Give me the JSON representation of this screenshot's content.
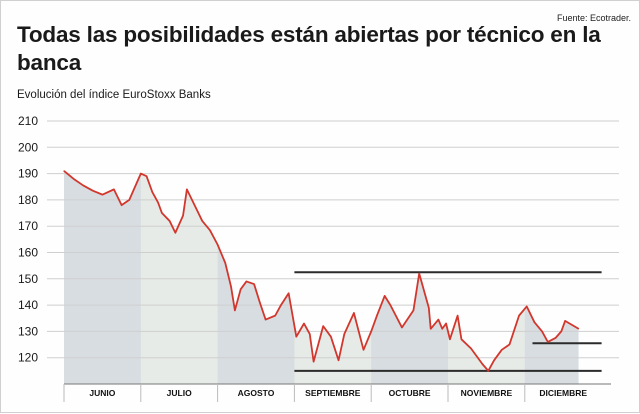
{
  "source": "Fuente: Ecotrader.",
  "title": "Todas las posibilidades están abiertas por técnico en la banca",
  "subtitle": "Evolución del índice EuroStoxx Banks",
  "colors": {
    "line": "#d2372d",
    "fill_a": "#d8dde1",
    "fill_b": "#e6ebe7",
    "grid": "#cfcfcf",
    "support": "#2b2b2b"
  },
  "chart_data": {
    "type": "area",
    "title": "Evolución del índice EuroStoxx Banks",
    "ylim": [
      110,
      210
    ],
    "yticks": [
      120,
      130,
      140,
      150,
      160,
      170,
      180,
      190,
      200,
      210
    ],
    "grid": "horizontal",
    "categories": [
      "JUNIO",
      "JULIO",
      "AGOSTO",
      "SEPTIEMBRE",
      "OCTUBRE",
      "NOVIEMBRE",
      "DICIEMBRE"
    ],
    "series": [
      {
        "values": [
          [
            0.0,
            191
          ],
          [
            0.25,
            188
          ],
          [
            0.5,
            185.5
          ],
          [
            0.75,
            183.5
          ],
          [
            1.0,
            182
          ],
          [
            1.3,
            184
          ],
          [
            1.5,
            178
          ],
          [
            1.7,
            180
          ],
          [
            2.0,
            190
          ],
          [
            2.15,
            189
          ],
          [
            2.3,
            183
          ],
          [
            2.45,
            179
          ],
          [
            2.55,
            175
          ],
          [
            2.75,
            172
          ],
          [
            2.9,
            167.5
          ],
          [
            3.1,
            174
          ],
          [
            3.2,
            184
          ],
          [
            3.4,
            178
          ],
          [
            3.6,
            172
          ],
          [
            3.8,
            168.5
          ],
          [
            4.0,
            163
          ],
          [
            4.2,
            156
          ],
          [
            4.35,
            147
          ],
          [
            4.45,
            138
          ],
          [
            4.6,
            146
          ],
          [
            4.75,
            149
          ],
          [
            4.95,
            148
          ],
          [
            5.1,
            141
          ],
          [
            5.25,
            134.5
          ],
          [
            5.5,
            136
          ],
          [
            5.65,
            140
          ],
          [
            5.85,
            144.5
          ],
          [
            6.05,
            128
          ],
          [
            6.25,
            133
          ],
          [
            6.4,
            129
          ],
          [
            6.5,
            118.5
          ],
          [
            6.75,
            132
          ],
          [
            6.95,
            128
          ],
          [
            7.15,
            119
          ],
          [
            7.3,
            129
          ],
          [
            7.55,
            137
          ],
          [
            7.8,
            123
          ],
          [
            8.0,
            130
          ],
          [
            8.15,
            136
          ],
          [
            8.35,
            143.5
          ],
          [
            8.5,
            140
          ],
          [
            8.8,
            131.5
          ],
          [
            9.1,
            138
          ],
          [
            9.25,
            152
          ],
          [
            9.5,
            139
          ],
          [
            9.55,
            131
          ],
          [
            9.75,
            134.5
          ],
          [
            9.85,
            131
          ],
          [
            9.95,
            133
          ],
          [
            10.05,
            127
          ],
          [
            10.25,
            136
          ],
          [
            10.35,
            127
          ],
          [
            10.6,
            123.5
          ],
          [
            10.9,
            117.5
          ],
          [
            11.05,
            115
          ],
          [
            11.2,
            119
          ],
          [
            11.4,
            123
          ],
          [
            11.6,
            125
          ],
          [
            11.85,
            136
          ],
          [
            12.05,
            139.5
          ],
          [
            12.25,
            133.5
          ],
          [
            12.45,
            130
          ],
          [
            12.6,
            126
          ],
          [
            12.8,
            127.5
          ],
          [
            12.95,
            130
          ],
          [
            13.05,
            134
          ],
          [
            13.4,
            131
          ]
        ]
      }
    ],
    "resistance": 152.5,
    "supports": [
      {
        "level": 125.5,
        "from": 12.2,
        "to": 14
      },
      {
        "level": 115,
        "from": 6.0,
        "to": 14
      }
    ]
  }
}
